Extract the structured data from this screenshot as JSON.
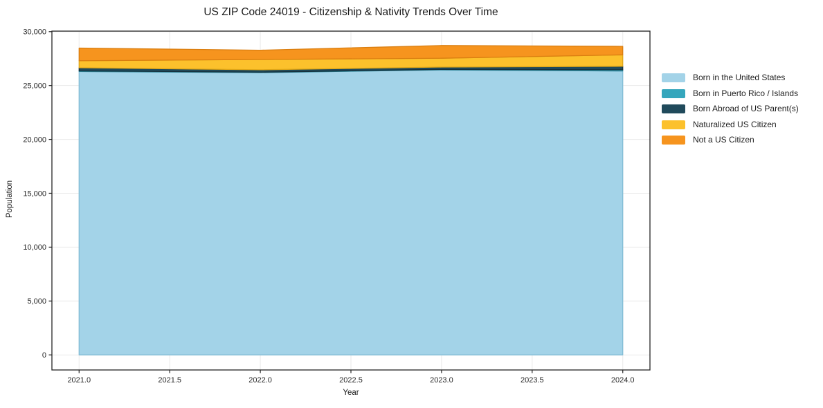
{
  "chart_data": {
    "type": "area",
    "stacked": true,
    "title": "US ZIP Code 24019 - Citizenship & Nativity Trends Over Time",
    "xlabel": "Year",
    "ylabel": "Population",
    "x": [
      2021,
      2022,
      2023,
      2024
    ],
    "series": [
      {
        "name": "Born in the United States",
        "color": "#a3d3e8",
        "edge": "#82bcd6",
        "values": [
          26300,
          26200,
          26450,
          26350
        ]
      },
      {
        "name": "Born in Puerto Rico / Islands",
        "color": "#35a6bc",
        "edge": "#2b8598",
        "values": [
          60,
          40,
          50,
          110
        ]
      },
      {
        "name": "Born Abroad of US Parent(s)",
        "color": "#204a5b",
        "edge": "#15313d",
        "values": [
          290,
          220,
          215,
          320
        ]
      },
      {
        "name": "Naturalized US Citizen",
        "color": "#fcc12c",
        "edge": "#dfa617",
        "values": [
          650,
          960,
          820,
          1070
        ]
      },
      {
        "name": "Not a US Citizen",
        "color": "#f6941e",
        "edge": "#da7e10",
        "values": [
          1180,
          860,
          1180,
          790
        ]
      }
    ],
    "xticks": [
      2021.0,
      2021.5,
      2022.0,
      2022.5,
      2023.0,
      2023.5,
      2024.0
    ],
    "yticks": [
      0,
      5000,
      10000,
      15000,
      20000,
      25000,
      30000
    ],
    "xlim": [
      2020.85,
      2024.15
    ],
    "ylim": [
      -1400,
      30050
    ],
    "grid": true,
    "legend_position": "right",
    "spine_color": "#222222",
    "grid_color": "#eaeaea"
  }
}
